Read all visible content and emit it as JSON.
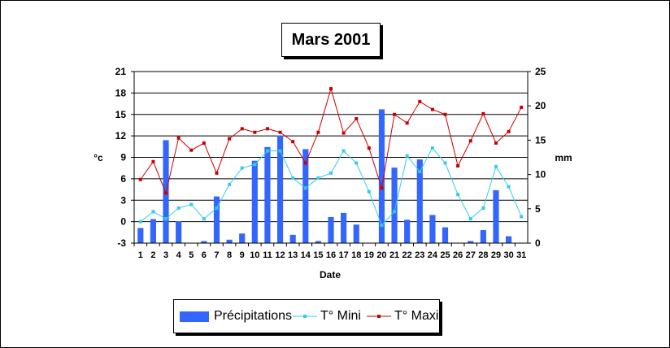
{
  "chart_data": {
    "type": "bar",
    "title": "Mars 2001",
    "xlabel": "Date",
    "ylabel_left": "°c",
    "ylabel_right": "mm",
    "categories": [
      "1",
      "2",
      "3",
      "4",
      "5",
      "6",
      "7",
      "8",
      "9",
      "10",
      "11",
      "12",
      "13",
      "14",
      "15",
      "16",
      "17",
      "18",
      "19",
      "20",
      "21",
      "22",
      "23",
      "24",
      "25",
      "26",
      "27",
      "28",
      "29",
      "30",
      "31"
    ],
    "y_left": {
      "min": -3,
      "max": 21,
      "ticks": [
        "21",
        "18",
        "15",
        "12",
        "9",
        "6",
        "3",
        "0",
        "-3"
      ]
    },
    "y_right": {
      "min": 0,
      "max": 25,
      "ticks": [
        "25",
        "20",
        "15",
        "10",
        "5",
        "0"
      ]
    },
    "grid": true,
    "legend_position": "bottom",
    "series": [
      {
        "name": "Précipitations",
        "type": "bar",
        "axis": "right",
        "color": "#3366ff",
        "values": [
          2.2,
          3.5,
          15.0,
          3.2,
          0,
          0.3,
          6.8,
          0.5,
          1.4,
          12.0,
          14.0,
          15.7,
          1.2,
          13.7,
          0.3,
          3.8,
          4.4,
          2.7,
          0,
          19.5,
          11.0,
          3.4,
          12.2,
          4.1,
          2.3,
          0,
          0.3,
          1.9,
          7.7,
          1.0,
          0
        ]
      },
      {
        "name": "T° Mini",
        "type": "line",
        "axis": "left",
        "color": "#33ccee",
        "values": [
          0,
          1.4,
          0.4,
          1.9,
          2.4,
          0.4,
          1.9,
          5.2,
          7.5,
          8.0,
          9.9,
          9.9,
          6.1,
          4.7,
          6.1,
          6.8,
          9.9,
          8.2,
          4.2,
          -0.5,
          1.4,
          9.2,
          7.0,
          10.3,
          8.2,
          3.8,
          0.4,
          1.9,
          7.7,
          4.9,
          0.7
        ]
      },
      {
        "name": "T° Maxi",
        "type": "line",
        "axis": "left",
        "color": "#cc0000",
        "values": [
          5.9,
          8.4,
          4.0,
          11.7,
          10.0,
          11.0,
          6.8,
          11.6,
          13.0,
          12.5,
          13.0,
          12.5,
          11.2,
          8.2,
          12.5,
          18.6,
          12.4,
          14.4,
          10.3,
          4.7,
          15.0,
          13.8,
          16.8,
          15.7,
          15.0,
          7.8,
          11.3,
          15.1,
          11.0,
          12.6,
          16.0
        ]
      }
    ]
  }
}
